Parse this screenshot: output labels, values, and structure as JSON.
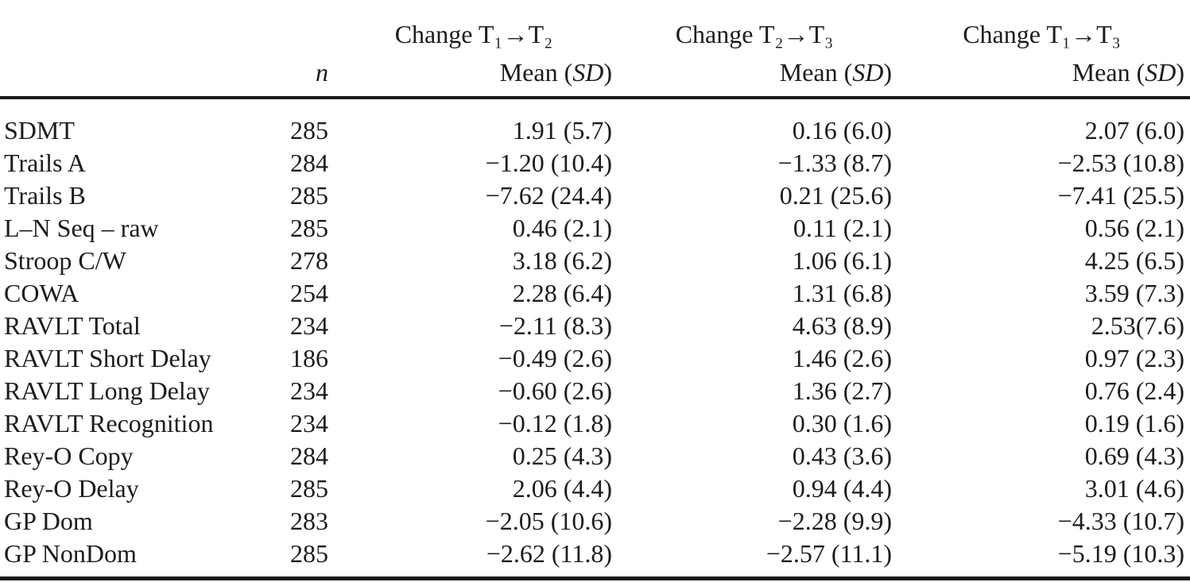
{
  "table": {
    "header": {
      "n_label": "n",
      "groups": [
        {
          "change": "Change T₁→T₂"
        },
        {
          "change": "Change T₂→T₃"
        },
        {
          "change": "Change T₁→T₃"
        }
      ],
      "mean_pre": "Mean (",
      "mean_sd": "SD",
      "mean_post": ")"
    },
    "rows": [
      {
        "test": "SDMT",
        "n": "285",
        "t1t2": "1.91 (5.7)",
        "t2t3": "0.16 (6.0)",
        "t1t3": "2.07 (6.0)"
      },
      {
        "test": "Trails A",
        "n": "284",
        "t1t2": "−1.20 (10.4)",
        "t2t3": "−1.33 (8.7)",
        "t1t3": "−2.53 (10.8)"
      },
      {
        "test": "Trails B",
        "n": "285",
        "t1t2": "−7.62 (24.4)",
        "t2t3": "0.21 (25.6)",
        "t1t3": "−7.41 (25.5)"
      },
      {
        "test": "L–N Seq – raw",
        "n": "285",
        "t1t2": "0.46 (2.1)",
        "t2t3": "0.11 (2.1)",
        "t1t3": "0.56 (2.1)"
      },
      {
        "test": "Stroop C/W",
        "n": "278",
        "t1t2": "3.18 (6.2)",
        "t2t3": "1.06 (6.1)",
        "t1t3": "4.25 (6.5)"
      },
      {
        "test": "COWA",
        "n": "254",
        "t1t2": "2.28 (6.4)",
        "t2t3": "1.31 (6.8)",
        "t1t3": "3.59 (7.3)"
      },
      {
        "test": "RAVLT Total",
        "n": "234",
        "t1t2": "−2.11 (8.3)",
        "t2t3": "4.63 (8.9)",
        "t1t3": "2.53(7.6)"
      },
      {
        "test": "RAVLT Short Delay",
        "n": "186",
        "t1t2": "−0.49 (2.6)",
        "t2t3": "1.46 (2.6)",
        "t1t3": "0.97 (2.3)"
      },
      {
        "test": "RAVLT Long Delay",
        "n": "234",
        "t1t2": "−0.60 (2.6)",
        "t2t3": "1.36 (2.7)",
        "t1t3": "0.76 (2.4)"
      },
      {
        "test": "RAVLT Recognition",
        "n": "234",
        "t1t2": "−0.12 (1.8)",
        "t2t3": "0.30 (1.6)",
        "t1t3": "0.19 (1.6)"
      },
      {
        "test": "Rey-O Copy",
        "n": "284",
        "t1t2": "0.25 (4.3)",
        "t2t3": "0.43 (3.6)",
        "t1t3": "0.69 (4.3)"
      },
      {
        "test": "Rey-O Delay",
        "n": "285",
        "t1t2": "2.06 (4.4)",
        "t2t3": "0.94 (4.4)",
        "t1t3": "3.01 (4.6)"
      },
      {
        "test": "GP Dom",
        "n": "283",
        "t1t2": "−2.05 (10.6)",
        "t2t3": "−2.28 (9.9)",
        "t1t3": "−4.33 (10.7)"
      },
      {
        "test": "GP NonDom",
        "n": "285",
        "t1t2": "−2.62 (11.8)",
        "t2t3": "−2.57 (11.1)",
        "t1t3": "−5.19 (10.3)"
      }
    ]
  },
  "colors": {
    "text": "#1c1c1c",
    "rule": "#1a1a1a",
    "background": "#ffffff"
  }
}
